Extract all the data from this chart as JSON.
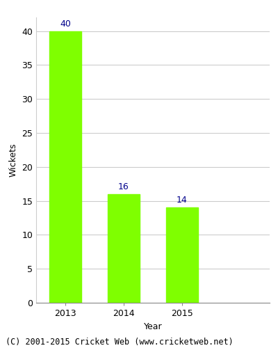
{
  "categories": [
    "2013",
    "2014",
    "2015"
  ],
  "values": [
    40,
    16,
    14
  ],
  "bar_color": "#7fff00",
  "bar_edgecolor": "#7fff00",
  "value_label_color": "#00008b",
  "xlabel": "Year",
  "ylabel": "Wickets",
  "ylim": [
    0,
    42
  ],
  "yticks": [
    0,
    5,
    10,
    15,
    20,
    25,
    30,
    35,
    40
  ],
  "grid_color": "#cccccc",
  "background_color": "#ffffff",
  "footer": "(C) 2001-2015 Cricket Web (www.cricketweb.net)",
  "value_fontsize": 9,
  "axis_fontsize": 9,
  "tick_fontsize": 9,
  "footer_fontsize": 8.5,
  "bar_width": 0.55
}
